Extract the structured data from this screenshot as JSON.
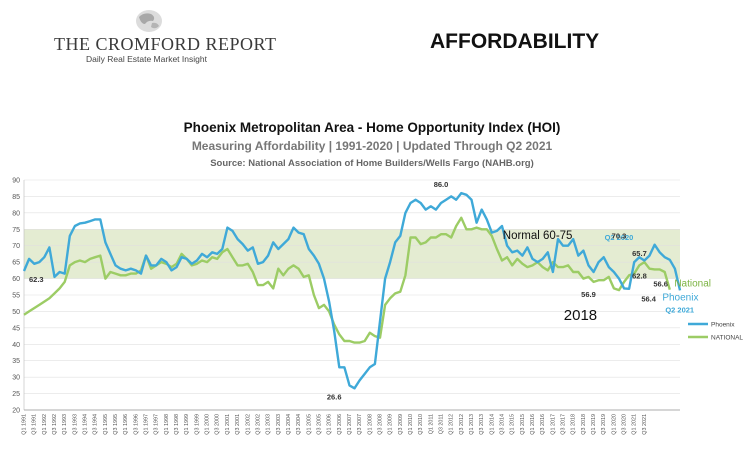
{
  "header": {
    "logo_title": "THE CROMFORD REPORT",
    "logo_subtitle": "Daily Real Estate Market Insight",
    "banner": "AFFORDABILITY"
  },
  "chart_data": {
    "type": "line",
    "title": "Phoenix Metropolitan Area - Home Opportunity Index (HOI)",
    "subtitle": "Measuring Affordability | 1991-2020 | Updated Through Q2 2021",
    "source": "Source: National Association of Home Builders/Wells Fargo (NAHB.org)",
    "ylim": [
      20,
      90
    ],
    "ytick_step": 5,
    "x_start_year": 1991,
    "x_end_year": 2021,
    "x_end_quarter": 2,
    "x_tick_labels": "Q1 and Q3 of each year, 1991 to 2021 (Q1 only for 2021)",
    "band": {
      "low": 60,
      "high": 75,
      "label": "Normal 60-75",
      "color": "#e4ecd2"
    },
    "grid": true,
    "legend_position": "bottom-right",
    "series": [
      {
        "name": "Phoenix",
        "color": "#3fa9d8",
        "values": [
          62.3,
          66,
          64.5,
          65,
          66.5,
          69.5,
          60.5,
          62,
          61.5,
          73,
          76,
          76.8,
          77,
          77.5,
          78,
          78,
          71,
          67.5,
          64,
          63,
          62.5,
          63,
          62.5,
          61.5,
          67,
          64,
          64,
          66,
          65,
          62.5,
          63.5,
          66.5,
          66,
          64.5,
          65.5,
          67.5,
          66.5,
          68,
          67.5,
          69,
          75.5,
          74.5,
          72,
          70.5,
          68.5,
          69.5,
          64.5,
          65,
          67,
          71,
          69,
          70.5,
          72,
          75.5,
          74,
          73.5,
          69,
          67,
          64.5,
          60,
          53,
          44,
          33,
          33,
          27.5,
          26.6,
          29,
          31,
          33,
          34,
          47,
          60,
          65,
          71,
          73,
          80,
          83,
          84,
          83,
          81,
          82,
          81,
          83,
          84,
          85,
          84,
          86,
          85.5,
          84,
          77,
          81,
          78,
          74,
          74.5,
          76,
          70,
          68,
          68.5,
          67,
          69.5,
          66,
          65,
          66,
          68,
          62,
          72,
          70,
          70,
          72,
          67,
          68.5,
          64,
          62,
          65,
          66.5,
          63.5,
          62,
          60,
          57,
          56.9,
          65,
          66.5,
          65.5,
          67,
          70.3,
          68,
          66.5,
          65.7,
          63,
          56.4
        ]
      },
      {
        "name": "NATIONAL",
        "color": "#9ccc65",
        "values": [
          49,
          50,
          51,
          52,
          53,
          54,
          55.5,
          57,
          59,
          64,
          65,
          65.5,
          65,
          66,
          66.5,
          67,
          60,
          62,
          61.5,
          61,
          61,
          61.5,
          61.5,
          62.5,
          67,
          63,
          64,
          65,
          64.5,
          63.5,
          64.5,
          67.5,
          66,
          64,
          64.5,
          65.5,
          65,
          66.5,
          66,
          68,
          69,
          66.5,
          64,
          64,
          64.5,
          62,
          58,
          58,
          59,
          57,
          63,
          61,
          63,
          64,
          63,
          60.5,
          61,
          55,
          51,
          52,
          50,
          46,
          43,
          41,
          41,
          40.5,
          40.5,
          41,
          43.5,
          42.5,
          42,
          52,
          54,
          55.5,
          56,
          61,
          72.5,
          72.5,
          70.5,
          71,
          72.5,
          72.5,
          73.5,
          73.5,
          72.5,
          76,
          78.5,
          75,
          75,
          75.5,
          75,
          75,
          73,
          69,
          65.5,
          66.5,
          64,
          66,
          64.5,
          63.5,
          64,
          65,
          63.5,
          62.5,
          65,
          63.5,
          63.5,
          64,
          62,
          62,
          60,
          60.5,
          59,
          59.5,
          59.5,
          60.5,
          57,
          56.5,
          59,
          61,
          61.5,
          64,
          65,
          63,
          62.8,
          62.8,
          62,
          56.6
        ]
      }
    ],
    "annotations": [
      {
        "text": "62.3",
        "x": "Q1 1991",
        "y": 62.3
      },
      {
        "text": "86.0",
        "x": "Q3 2011",
        "y": 86.0
      },
      {
        "text": "26.6",
        "x": "Q2 2006",
        "y": 26.6
      },
      {
        "text": "Normal 60-75",
        "x": "Q2 2016",
        "y": 72
      },
      {
        "text": "Q2 2020",
        "x": "Q2 2020",
        "y": 73.5
      },
      {
        "text": "70.3",
        "x": "Q2 2020",
        "y": 70.3
      },
      {
        "text": "65.7",
        "x": "Q4 2020",
        "y": 65.7
      },
      {
        "text": "62.8",
        "x": "Q4 2020",
        "y": 62.8
      },
      {
        "text": "56.9",
        "x": "Q4 2018",
        "y": 56.9
      },
      {
        "text": "2018",
        "x": "Q4 2018",
        "y": 51
      },
      {
        "text": "56.6",
        "x": "Q2 2021",
        "y": 56.6
      },
      {
        "text": "National",
        "x": "Q2 2021",
        "y": 56.6
      },
      {
        "text": "56.4",
        "x": "Q2 2021",
        "y": 56.4
      },
      {
        "text": "Phoenix",
        "x": "Q2 2021",
        "y": 56.4
      },
      {
        "text": "Q2 2021",
        "x": "Q2 2021",
        "y": 56.4
      }
    ]
  }
}
